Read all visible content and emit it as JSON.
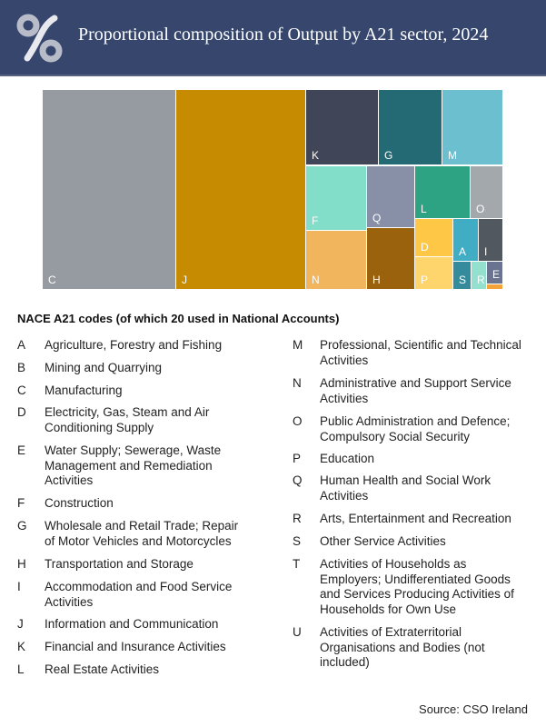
{
  "header": {
    "title": "Proportional composition of Output by A21 sector, 2024"
  },
  "chart_data": {
    "type": "treemap",
    "title": "Proportional composition of Output by A21 sector, 2024",
    "unit": "approximate share of output (%), estimated from areas",
    "items": [
      {
        "code": "C",
        "value": 28.9,
        "color": "#959ba1"
      },
      {
        "code": "J",
        "value": 28.1,
        "color": "#c68b00"
      },
      {
        "code": "K",
        "value": 5.8,
        "color": "#414558"
      },
      {
        "code": "G",
        "value": 5.1,
        "color": "#236a74"
      },
      {
        "code": "M",
        "value": 4.9,
        "color": "#6bbfcf"
      },
      {
        "code": "F",
        "value": 4.2,
        "color": "#82ddc9"
      },
      {
        "code": "N",
        "value": 3.8,
        "color": "#f1b55e"
      },
      {
        "code": "Q",
        "value": 3.1,
        "color": "#8890a8"
      },
      {
        "code": "H",
        "value": 3.1,
        "color": "#9b620e"
      },
      {
        "code": "L",
        "value": 3.1,
        "color": "#2ea384"
      },
      {
        "code": "O",
        "value": 1.8,
        "color": "#a3a8ad"
      },
      {
        "code": "D",
        "value": 1.5,
        "color": "#fec846"
      },
      {
        "code": "P",
        "value": 1.3,
        "color": "#fed46d"
      },
      {
        "code": "A",
        "value": 1.1,
        "color": "#40adc4"
      },
      {
        "code": "I",
        "value": 1.1,
        "color": "#525860"
      },
      {
        "code": "S",
        "value": 0.5,
        "color": "#348b9c"
      },
      {
        "code": "R",
        "value": 0.4,
        "color": "#93e0ce"
      },
      {
        "code": "E",
        "value": 0.4,
        "color": "#6a7390"
      },
      {
        "code": "B",
        "value": 0.1,
        "color": "#f2a33a"
      }
    ]
  },
  "legend": {
    "heading": "NACE A21 codes (of which 20 used in National Accounts)",
    "items": [
      {
        "code": "A",
        "label": "Agriculture, Forestry and Fishing"
      },
      {
        "code": "B",
        "label": "Mining and Quarrying"
      },
      {
        "code": "C",
        "label": "Manufacturing"
      },
      {
        "code": "D",
        "label": "Electricity, Gas, Steam and Air Conditioning Supply"
      },
      {
        "code": "E",
        "label": "Water Supply; Sewerage, Waste Management and Remediation Activities"
      },
      {
        "code": "F",
        "label": "Construction"
      },
      {
        "code": "G",
        "label": "Wholesale and Retail Trade; Repair of Motor Vehicles and Motorcycles"
      },
      {
        "code": "H",
        "label": "Transportation and Storage"
      },
      {
        "code": "I",
        "label": "Accommodation and Food Service Activities"
      },
      {
        "code": "J",
        "label": "Information and Communication"
      },
      {
        "code": "K",
        "label": "Financial and Insurance Activities"
      },
      {
        "code": "L",
        "label": "Real Estate Activities"
      },
      {
        "code": "M",
        "label": "Professional, Scientific and Technical Activities"
      },
      {
        "code": "N",
        "label": "Administrative and Support Service Activities"
      },
      {
        "code": "O",
        "label": "Public Administration and Defence; Compulsory Social Security"
      },
      {
        "code": "P",
        "label": "Education"
      },
      {
        "code": "Q",
        "label": "Human Health and Social Work Activities"
      },
      {
        "code": "R",
        "label": "Arts, Entertainment and Recreation"
      },
      {
        "code": "S",
        "label": "Other Service Activities"
      },
      {
        "code": "T",
        "label": "Activities of Households as Employers; Undifferentiated Goods and Services Producing Activities of Households for Own Use"
      },
      {
        "code": "U",
        "label": "Activities of Extraterritorial Organisations and Bodies (not included)"
      }
    ]
  },
  "source": "Source:  CSO Ireland"
}
